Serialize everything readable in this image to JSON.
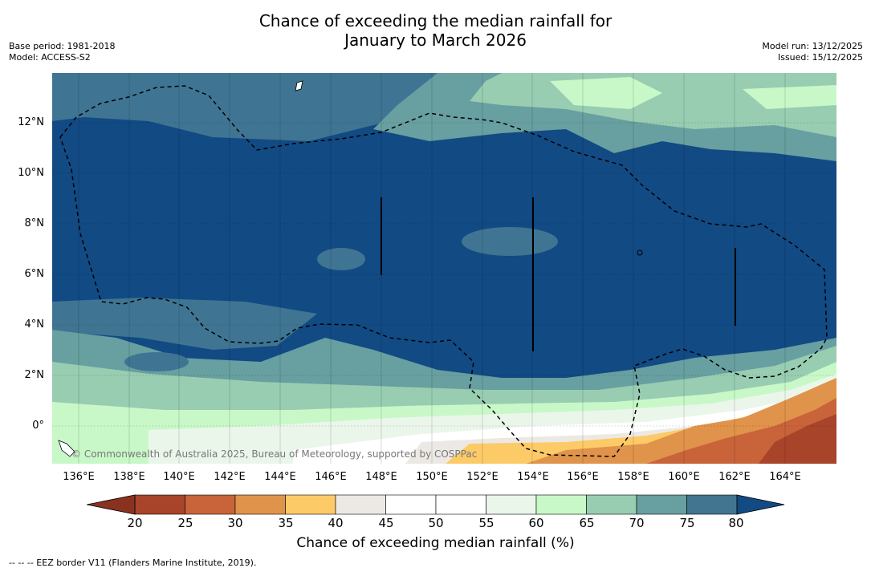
{
  "title": {
    "line1": "Chance of exceeding the median rainfall for",
    "line2": "January to March 2026"
  },
  "meta": {
    "base_period": "Base period: 1981-2018",
    "model": "Model: ACCESS-S2",
    "model_run": "Model run: 13/12/2025",
    "issued": "Issued: 15/12/2025"
  },
  "map": {
    "copyright": "© Commonwealth of Australia 2025, Bureau of Meteorology, supported by COSPPac",
    "lat_labels": [
      "12°N",
      "10°N",
      "8°N",
      "6°N",
      "4°N",
      "2°N",
      "0°"
    ],
    "lon_labels": [
      "136°E",
      "138°E",
      "140°E",
      "142°E",
      "144°E",
      "146°E",
      "148°E",
      "150°E",
      "152°E",
      "154°E",
      "156°E",
      "158°E",
      "160°E",
      "162°E",
      "164°E"
    ]
  },
  "legend": {
    "ticks": [
      "20",
      "25",
      "30",
      "35",
      "40",
      "45",
      "50",
      "55",
      "60",
      "65",
      "70",
      "75",
      "80"
    ],
    "label": "Chance of exceeding median rainfall (%)",
    "colors": [
      "#a8442a",
      "#c9633a",
      "#e0934a",
      "#fdca68",
      "#ece9e4",
      "#ffffff",
      "#ffffff",
      "#ebf6eb",
      "#c8f8c8",
      "#98cdb2",
      "#689fa0",
      "#417590"
    ],
    "low_color": "#8a3220",
    "high_color": "#124a84"
  },
  "footnote": "--  --  -- EEZ border V11 (Flanders Marine Institute, 2019)."
}
